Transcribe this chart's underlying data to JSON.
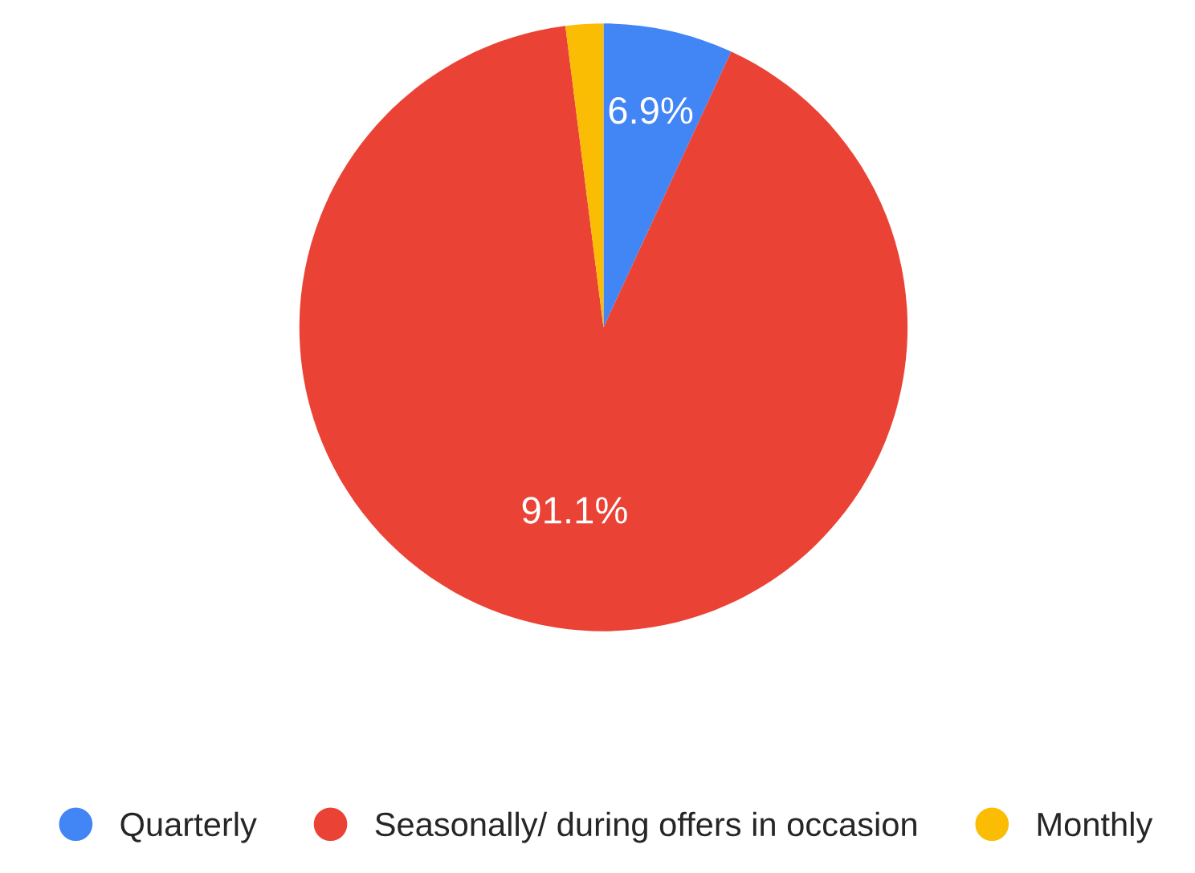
{
  "chart_data": {
    "type": "pie",
    "categories": [
      "Quarterly",
      "Seasonally/ during offers in occasion",
      "Monthly"
    ],
    "values": [
      6.9,
      91.1,
      2.0
    ],
    "colors": [
      "#4285f4",
      "#ea4335",
      "#fbbc04"
    ],
    "value_labels": [
      "6.9%",
      "91.1%",
      null
    ],
    "legend": "bottom"
  }
}
